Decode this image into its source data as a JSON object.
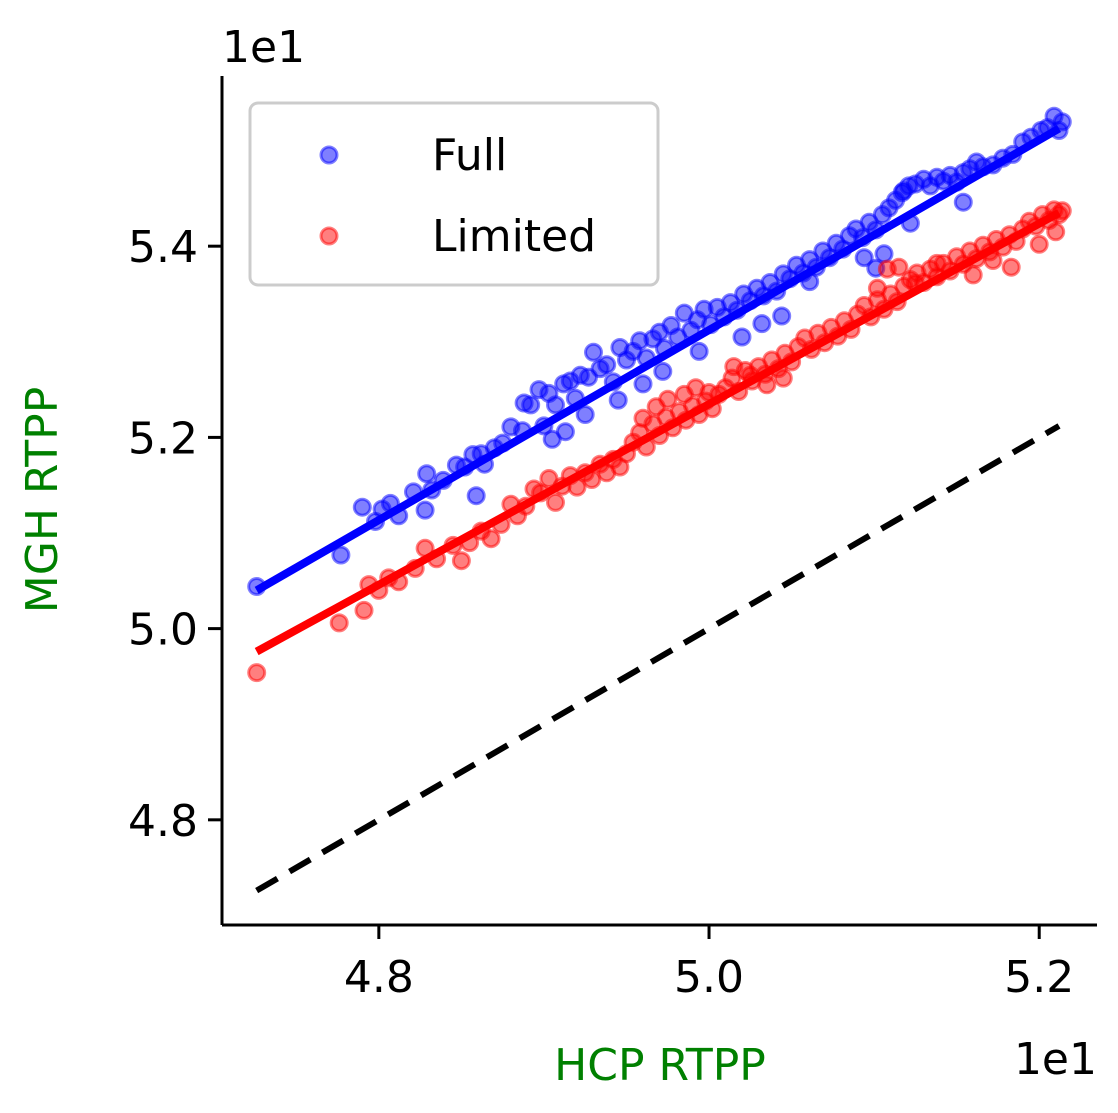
{
  "chart_data": {
    "type": "scatter",
    "xlabel": "HCP RTPP",
    "ylabel": "MGH RTPP",
    "axis_label_color": "#008000",
    "x_offset_text": "1e1",
    "y_offset_text": "1e1",
    "xlim": [
      4.705,
      5.235
    ],
    "ylim": [
      4.69,
      5.578
    ],
    "x_ticks": [
      4.8,
      5.0,
      5.2
    ],
    "x_tick_labels": [
      "4.8",
      "5.0",
      "5.2"
    ],
    "y_ticks": [
      4.8,
      5.0,
      5.2,
      5.4
    ],
    "y_tick_labels": [
      "4.8",
      "5.0",
      "5.2",
      "5.4"
    ],
    "grid": false,
    "legend_position": "top-left",
    "series": [
      {
        "name": "Full",
        "color": "#0000ff",
        "fit_line": {
          "x": [
            4.726,
            5.212
          ],
          "y": [
            5.04,
            5.523
          ]
        },
        "points": [
          [
            4.726,
            5.044
          ],
          [
            4.777,
            5.077
          ],
          [
            4.79,
            5.127
          ],
          [
            4.798,
            5.112
          ],
          [
            4.802,
            5.125
          ],
          [
            4.807,
            5.131
          ],
          [
            4.812,
            5.118
          ],
          [
            4.821,
            5.143
          ],
          [
            4.828,
            5.124
          ],
          [
            4.829,
            5.162
          ],
          [
            4.839,
            5.155
          ],
          [
            4.847,
            5.171
          ],
          [
            4.852,
            5.169
          ],
          [
            4.857,
            5.182
          ],
          [
            4.862,
            5.183
          ],
          [
            4.859,
            5.139
          ],
          [
            4.87,
            5.189
          ],
          [
            4.875,
            5.194
          ],
          [
            4.88,
            5.211
          ],
          [
            4.888,
            5.236
          ],
          [
            4.892,
            5.234
          ],
          [
            4.897,
            5.25
          ],
          [
            4.9,
            5.212
          ],
          [
            4.903,
            5.246
          ],
          [
            4.907,
            5.234
          ],
          [
            4.912,
            5.256
          ],
          [
            4.916,
            5.259
          ],
          [
            4.919,
            5.241
          ],
          [
            4.922,
            5.265
          ],
          [
            4.927,
            5.263
          ],
          [
            4.93,
            5.289
          ],
          [
            4.934,
            5.272
          ],
          [
            4.938,
            5.276
          ],
          [
            4.942,
            5.258
          ],
          [
            4.946,
            5.294
          ],
          [
            4.95,
            5.281
          ],
          [
            4.954,
            5.29
          ],
          [
            4.958,
            5.301
          ],
          [
            4.962,
            5.283
          ],
          [
            4.966,
            5.303
          ],
          [
            4.97,
            5.31
          ],
          [
            4.973,
            5.293
          ],
          [
            4.977,
            5.317
          ],
          [
            4.981,
            5.305
          ],
          [
            4.985,
            5.33
          ],
          [
            4.989,
            5.312
          ],
          [
            4.993,
            5.323
          ],
          [
            4.997,
            5.334
          ],
          [
            5.001,
            5.318
          ],
          [
            5.005,
            5.336
          ],
          [
            5.009,
            5.326
          ],
          [
            5.013,
            5.341
          ],
          [
            5.017,
            5.333
          ],
          [
            5.021,
            5.35
          ],
          [
            5.025,
            5.343
          ],
          [
            5.029,
            5.356
          ],
          [
            5.033,
            5.348
          ],
          [
            5.037,
            5.362
          ],
          [
            5.041,
            5.353
          ],
          [
            5.045,
            5.371
          ],
          [
            5.049,
            5.366
          ],
          [
            5.053,
            5.38
          ],
          [
            5.057,
            5.372
          ],
          [
            5.061,
            5.386
          ],
          [
            5.065,
            5.378
          ],
          [
            5.069,
            5.395
          ],
          [
            5.073,
            5.388
          ],
          [
            5.077,
            5.403
          ],
          [
            5.081,
            5.397
          ],
          [
            5.085,
            5.411
          ],
          [
            5.089,
            5.418
          ],
          [
            5.093,
            5.409
          ],
          [
            5.097,
            5.425
          ],
          [
            5.101,
            5.417
          ],
          [
            5.105,
            5.433
          ],
          [
            5.109,
            5.44
          ],
          [
            5.113,
            5.448
          ],
          [
            5.117,
            5.456
          ],
          [
            5.121,
            5.463
          ],
          [
            5.125,
            5.465
          ],
          [
            5.13,
            5.47
          ],
          [
            5.134,
            5.463
          ],
          [
            5.138,
            5.472
          ],
          [
            5.142,
            5.468
          ],
          [
            5.146,
            5.474
          ],
          [
            5.15,
            5.467
          ],
          [
            5.154,
            5.477
          ],
          [
            5.158,
            5.481
          ],
          [
            5.162,
            5.488
          ],
          [
            5.166,
            5.483
          ],
          [
            5.172,
            5.485
          ],
          [
            5.178,
            5.492
          ],
          [
            5.184,
            5.496
          ],
          [
            5.19,
            5.509
          ],
          [
            5.195,
            5.514
          ],
          [
            5.201,
            5.521
          ],
          [
            5.205,
            5.524
          ],
          [
            5.209,
            5.536
          ],
          [
            5.212,
            5.521
          ],
          [
            5.214,
            5.53
          ],
          [
            5.154,
            5.446
          ],
          [
            5.122,
            5.424
          ],
          [
            5.118,
            5.458
          ],
          [
            5.106,
            5.392
          ],
          [
            5.101,
            5.377
          ],
          [
            5.094,
            5.388
          ],
          [
            5.061,
            5.363
          ],
          [
            5.044,
            5.327
          ],
          [
            5.032,
            5.319
          ],
          [
            5.02,
            5.305
          ],
          [
            4.994,
            5.29
          ],
          [
            4.972,
            5.269
          ],
          [
            4.96,
            5.256
          ],
          [
            4.945,
            5.239
          ],
          [
            4.925,
            5.224
          ],
          [
            4.913,
            5.206
          ],
          [
            4.905,
            5.198
          ],
          [
            4.887,
            5.207
          ],
          [
            4.864,
            5.172
          ],
          [
            4.832,
            5.145
          ]
        ]
      },
      {
        "name": "Limited",
        "color": "#ff0000",
        "fit_line": {
          "x": [
            4.726,
            5.212
          ],
          "y": [
            4.976,
            5.435
          ]
        },
        "points": [
          [
            4.726,
            4.954
          ],
          [
            4.776,
            5.006
          ],
          [
            4.791,
            5.019
          ],
          [
            4.794,
            5.046
          ],
          [
            4.8,
            5.04
          ],
          [
            4.806,
            5.053
          ],
          [
            4.812,
            5.049
          ],
          [
            4.822,
            5.063
          ],
          [
            4.828,
            5.084
          ],
          [
            4.835,
            5.073
          ],
          [
            4.845,
            5.087
          ],
          [
            4.85,
            5.071
          ],
          [
            4.855,
            5.09
          ],
          [
            4.862,
            5.102
          ],
          [
            4.868,
            5.094
          ],
          [
            4.874,
            5.109
          ],
          [
            4.88,
            5.13
          ],
          [
            4.884,
            5.118
          ],
          [
            4.889,
            5.128
          ],
          [
            4.894,
            5.146
          ],
          [
            4.898,
            5.142
          ],
          [
            4.903,
            5.157
          ],
          [
            4.907,
            5.132
          ],
          [
            4.911,
            5.149
          ],
          [
            4.916,
            5.16
          ],
          [
            4.92,
            5.148
          ],
          [
            4.925,
            5.163
          ],
          [
            4.929,
            5.156
          ],
          [
            4.934,
            5.172
          ],
          [
            4.938,
            5.163
          ],
          [
            4.942,
            5.177
          ],
          [
            4.946,
            5.169
          ],
          [
            4.95,
            5.183
          ],
          [
            4.954,
            5.195
          ],
          [
            4.958,
            5.205
          ],
          [
            4.962,
            5.19
          ],
          [
            4.966,
            5.214
          ],
          [
            4.97,
            5.202
          ],
          [
            4.974,
            5.221
          ],
          [
            4.978,
            5.21
          ],
          [
            4.982,
            5.227
          ],
          [
            4.986,
            5.218
          ],
          [
            4.99,
            5.233
          ],
          [
            4.994,
            5.224
          ],
          [
            4.998,
            5.238
          ],
          [
            5.002,
            5.23
          ],
          [
            5.006,
            5.245
          ],
          [
            5.01,
            5.252
          ],
          [
            5.014,
            5.262
          ],
          [
            5.018,
            5.248
          ],
          [
            5.022,
            5.27
          ],
          [
            5.026,
            5.259
          ],
          [
            5.03,
            5.274
          ],
          [
            5.034,
            5.266
          ],
          [
            5.038,
            5.281
          ],
          [
            5.042,
            5.272
          ],
          [
            5.046,
            5.288
          ],
          [
            5.05,
            5.279
          ],
          [
            5.054,
            5.295
          ],
          [
            5.058,
            5.304
          ],
          [
            5.062,
            5.292
          ],
          [
            5.066,
            5.309
          ],
          [
            5.07,
            5.299
          ],
          [
            5.074,
            5.315
          ],
          [
            5.078,
            5.306
          ],
          [
            5.082,
            5.322
          ],
          [
            5.086,
            5.313
          ],
          [
            5.09,
            5.329
          ],
          [
            5.094,
            5.338
          ],
          [
            5.098,
            5.326
          ],
          [
            5.102,
            5.344
          ],
          [
            5.106,
            5.334
          ],
          [
            5.11,
            5.35
          ],
          [
            5.114,
            5.342
          ],
          [
            5.118,
            5.358
          ],
          [
            5.122,
            5.365
          ],
          [
            5.126,
            5.372
          ],
          [
            5.13,
            5.362
          ],
          [
            5.134,
            5.376
          ],
          [
            5.138,
            5.368
          ],
          [
            5.142,
            5.382
          ],
          [
            5.146,
            5.374
          ],
          [
            5.15,
            5.389
          ],
          [
            5.154,
            5.381
          ],
          [
            5.158,
            5.395
          ],
          [
            5.162,
            5.387
          ],
          [
            5.166,
            5.401
          ],
          [
            5.17,
            5.394
          ],
          [
            5.174,
            5.407
          ],
          [
            5.178,
            5.399
          ],
          [
            5.182,
            5.412
          ],
          [
            5.186,
            5.405
          ],
          [
            5.19,
            5.418
          ],
          [
            5.194,
            5.426
          ],
          [
            5.198,
            5.421
          ],
          [
            5.202,
            5.433
          ],
          [
            5.206,
            5.427
          ],
          [
            5.209,
            5.438
          ],
          [
            5.212,
            5.433
          ],
          [
            5.214,
            5.437
          ],
          [
            5.102,
            5.356
          ],
          [
            5.108,
            5.376
          ],
          [
            5.115,
            5.378
          ],
          [
            5.125,
            5.361
          ],
          [
            5.138,
            5.382
          ],
          [
            5.16,
            5.37
          ],
          [
            5.172,
            5.385
          ],
          [
            5.183,
            5.378
          ],
          [
            5.2,
            5.402
          ],
          [
            5.21,
            5.415
          ],
          [
            4.96,
            5.22
          ],
          [
            4.968,
            5.232
          ],
          [
            4.975,
            5.24
          ],
          [
            4.985,
            5.245
          ],
          [
            4.992,
            5.252
          ],
          [
            5.0,
            5.247
          ],
          [
            5.015,
            5.274
          ],
          [
            5.025,
            5.265
          ],
          [
            5.035,
            5.255
          ],
          [
            5.045,
            5.262
          ]
        ]
      }
    ],
    "reference_line": {
      "style": "dashed",
      "color": "#000000",
      "x": [
        4.726,
        5.212
      ],
      "y": [
        4.726,
        5.212
      ]
    }
  }
}
